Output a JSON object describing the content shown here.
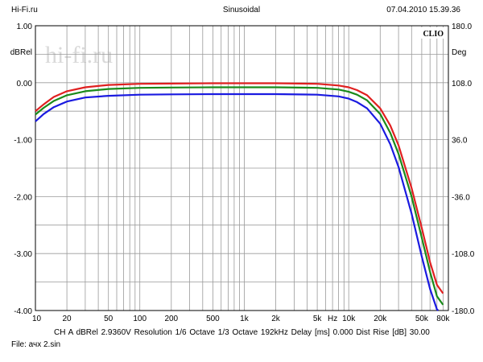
{
  "header": {
    "site": "Hi-Fi.ru",
    "mode": "Sinusoidal",
    "datetime": "07.04.2010 15.39.36"
  },
  "brand": "CLIO",
  "watermark": "hi-fi.ru",
  "footer": {
    "settings": "CH A   dBRel 2.9360V   Resolution 1/6 Octave   1/3 Octave   192kHz   Delay [ms] 0.000   Dist Rise [dB] 30.00",
    "file": "File: ачх 2.sin"
  },
  "chart_data": {
    "type": "line",
    "title": "",
    "xlabel": "Hz",
    "ylabel": "dBRel",
    "y2label": "Deg",
    "xscale": "log",
    "xlim": [
      10,
      90000
    ],
    "ylim": [
      -4.0,
      1.0
    ],
    "y2lim": [
      -180.0,
      180.0
    ],
    "grid": true,
    "x_ticks": [
      {
        "v": 10,
        "label": "10"
      },
      {
        "v": 20,
        "label": "20"
      },
      {
        "v": 50,
        "label": "50"
      },
      {
        "v": 100,
        "label": "100"
      },
      {
        "v": 200,
        "label": "200"
      },
      {
        "v": 500,
        "label": "500"
      },
      {
        "v": 1000,
        "label": "1k"
      },
      {
        "v": 2000,
        "label": "2k"
      },
      {
        "v": 5000,
        "label": "5k"
      },
      {
        "v": 10000,
        "label": "10k"
      },
      {
        "v": 20000,
        "label": "20k"
      },
      {
        "v": 50000,
        "label": "50k"
      },
      {
        "v": 80000,
        "label": "80k"
      }
    ],
    "x_unit_tick": {
      "v": 7000,
      "label": "Hz"
    },
    "y_ticks": [
      {
        "v": 1.0,
        "label": "1.00"
      },
      {
        "v": 0.0,
        "label": "0.00"
      },
      {
        "v": -1.0,
        "label": "-1.00"
      },
      {
        "v": -2.0,
        "label": "-2.00"
      },
      {
        "v": -3.0,
        "label": "-3.00"
      },
      {
        "v": -4.0,
        "label": "-4.00"
      }
    ],
    "y2_ticks": [
      {
        "v": 180.0,
        "label": "180.0"
      },
      {
        "v": 108.0,
        "label": "108.0"
      },
      {
        "v": 36.0,
        "label": "36.0"
      },
      {
        "v": -36.0,
        "label": "-36.0"
      },
      {
        "v": -108.0,
        "label": "-108.0"
      },
      {
        "v": -180.0,
        "label": "-180.0"
      }
    ],
    "series": [
      {
        "color": "#e02020",
        "points": [
          [
            10,
            -0.5
          ],
          [
            12,
            -0.38
          ],
          [
            15,
            -0.25
          ],
          [
            20,
            -0.15
          ],
          [
            30,
            -0.08
          ],
          [
            50,
            -0.04
          ],
          [
            100,
            -0.02
          ],
          [
            200,
            -0.015
          ],
          [
            500,
            -0.01
          ],
          [
            1000,
            -0.01
          ],
          [
            2000,
            -0.01
          ],
          [
            5000,
            -0.02
          ],
          [
            8000,
            -0.05
          ],
          [
            10000,
            -0.08
          ],
          [
            12000,
            -0.13
          ],
          [
            15000,
            -0.22
          ],
          [
            20000,
            -0.45
          ],
          [
            25000,
            -0.75
          ],
          [
            30000,
            -1.1
          ],
          [
            40000,
            -1.85
          ],
          [
            50000,
            -2.55
          ],
          [
            60000,
            -3.15
          ],
          [
            70000,
            -3.55
          ],
          [
            80000,
            -3.7
          ]
        ]
      },
      {
        "color": "#1a8a1a",
        "points": [
          [
            10,
            -0.56
          ],
          [
            12,
            -0.44
          ],
          [
            15,
            -0.32
          ],
          [
            20,
            -0.22
          ],
          [
            30,
            -0.15
          ],
          [
            50,
            -0.11
          ],
          [
            100,
            -0.09
          ],
          [
            200,
            -0.085
          ],
          [
            500,
            -0.08
          ],
          [
            1000,
            -0.08
          ],
          [
            2000,
            -0.08
          ],
          [
            5000,
            -0.09
          ],
          [
            8000,
            -0.12
          ],
          [
            10000,
            -0.16
          ],
          [
            12000,
            -0.21
          ],
          [
            15000,
            -0.31
          ],
          [
            20000,
            -0.55
          ],
          [
            25000,
            -0.88
          ],
          [
            30000,
            -1.25
          ],
          [
            40000,
            -2.0
          ],
          [
            50000,
            -2.72
          ],
          [
            60000,
            -3.32
          ],
          [
            70000,
            -3.75
          ],
          [
            80000,
            -3.9
          ]
        ]
      },
      {
        "color": "#1a1ae0",
        "points": [
          [
            10,
            -0.68
          ],
          [
            12,
            -0.55
          ],
          [
            15,
            -0.43
          ],
          [
            20,
            -0.33
          ],
          [
            30,
            -0.26
          ],
          [
            50,
            -0.23
          ],
          [
            100,
            -0.21
          ],
          [
            200,
            -0.205
          ],
          [
            500,
            -0.2
          ],
          [
            1000,
            -0.2
          ],
          [
            2000,
            -0.2
          ],
          [
            5000,
            -0.21
          ],
          [
            8000,
            -0.24
          ],
          [
            10000,
            -0.28
          ],
          [
            12000,
            -0.34
          ],
          [
            15000,
            -0.45
          ],
          [
            20000,
            -0.72
          ],
          [
            25000,
            -1.08
          ],
          [
            30000,
            -1.48
          ],
          [
            40000,
            -2.3
          ],
          [
            50000,
            -3.05
          ],
          [
            60000,
            -3.62
          ],
          [
            70000,
            -3.98
          ],
          [
            72000,
            -4.0
          ]
        ]
      }
    ]
  }
}
